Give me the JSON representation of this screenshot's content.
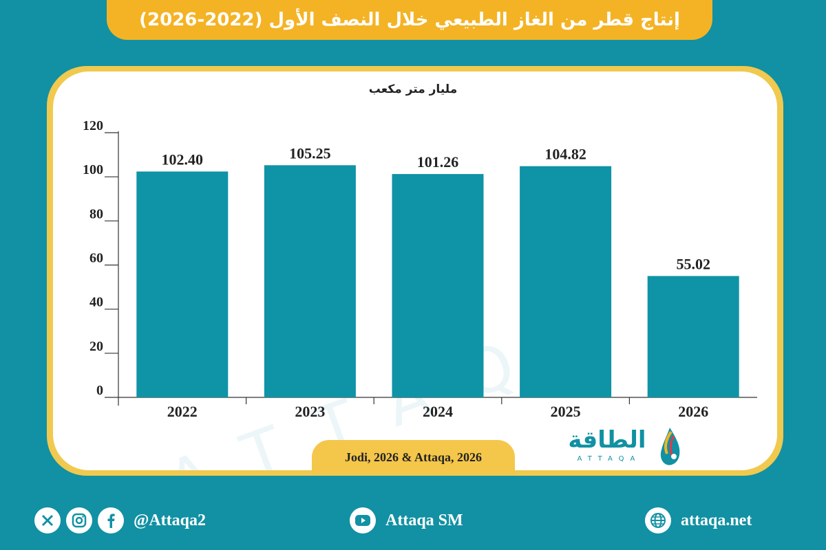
{
  "title": "إنتاج قطر من الغاز الطبيعي خلال النصف الأول (2022-2026)",
  "unit_label": "مليار متر مكعب",
  "source": "Jodi, 2026 & Attaqa, 2026",
  "logo": {
    "arabic": "الطاقة",
    "english": "ATTAQA"
  },
  "colors": {
    "background": "#1191a3",
    "bar": "#0f93a6",
    "accent": "#f4b325"
  },
  "chart_data": {
    "type": "bar",
    "title": "إنتاج قطر من الغاز الطبيعي خلال النصف الأول (2022-2026)",
    "ylabel": "مليار متر مكعب",
    "categories": [
      "2022",
      "2023",
      "2024",
      "2025",
      "2026"
    ],
    "values": [
      102.4,
      105.25,
      101.26,
      104.82,
      55.02
    ],
    "value_labels": [
      "102.40",
      "105.25",
      "101.26",
      "104.82",
      "55.02"
    ],
    "yticks": [
      "0",
      "20",
      "40",
      "60",
      "80",
      "100",
      "120"
    ],
    "ylim": [
      0,
      120
    ],
    "grid": false
  },
  "footer": {
    "social_handle": "@Attaqa2",
    "youtube": "Attaqa SM",
    "website": "attaqa.net",
    "icons": [
      "x-icon",
      "instagram-icon",
      "facebook-icon",
      "youtube-icon",
      "globe-icon"
    ]
  }
}
